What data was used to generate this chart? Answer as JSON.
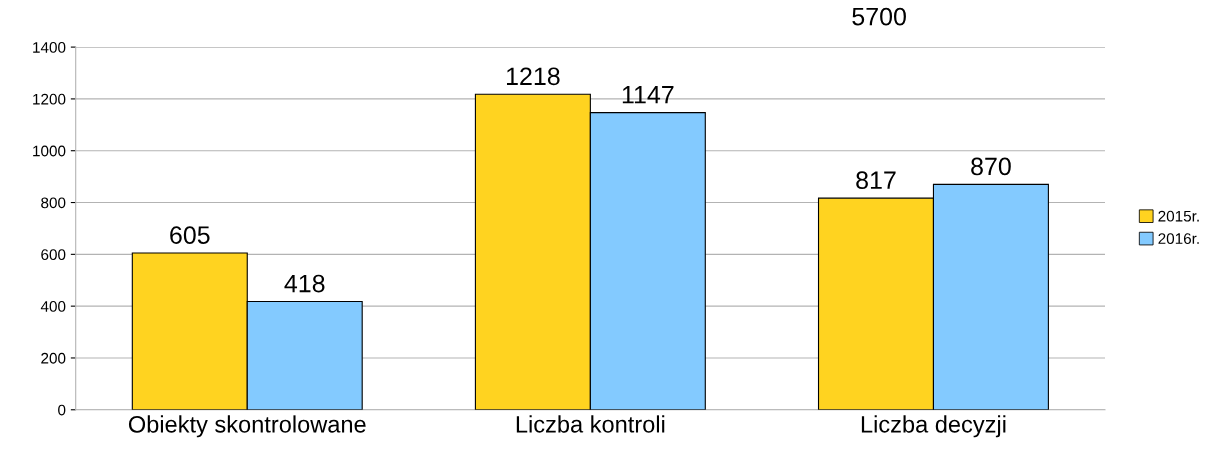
{
  "chart_data": {
    "type": "bar",
    "categories": [
      "Obiekty skontrolowane",
      "Liczba kontroli",
      "Liczba decyzji"
    ],
    "series": [
      {
        "name": "2015r.",
        "color": "#ffd320",
        "values": [
          605,
          1218,
          817
        ]
      },
      {
        "name": "2016r.",
        "color": "#83caff",
        "values": [
          418,
          1147,
          870
        ]
      }
    ],
    "ylim": [
      0,
      1400
    ],
    "yticks": [
      0,
      200,
      400,
      600,
      800,
      1000,
      1200,
      1400
    ],
    "grid": "y",
    "legend": "right",
    "data_labels": true,
    "annotations": [
      "5700"
    ]
  }
}
